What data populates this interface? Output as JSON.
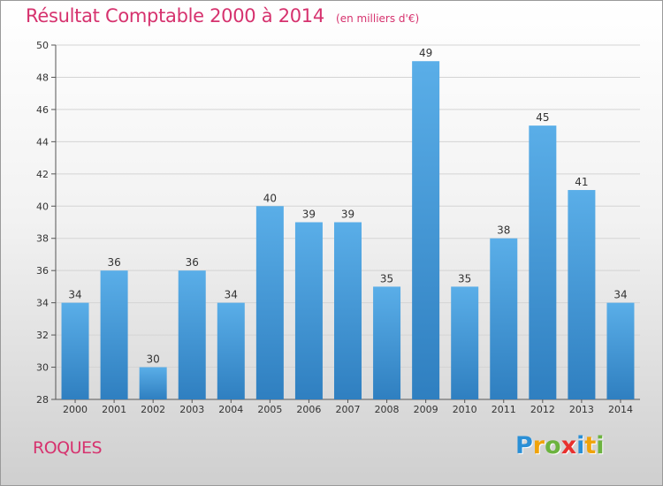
{
  "header": {
    "title": "Résultat Comptable 2000 à 2014",
    "subtitle": "(en milliers d'€)"
  },
  "footer": {
    "town": "ROQUES",
    "logo": {
      "text": "Proxiti",
      "letters": [
        {
          "ch": "P",
          "color": "#2a8fd6"
        },
        {
          "ch": "r",
          "color": "#f0a30a"
        },
        {
          "ch": "o",
          "color": "#6cb33f"
        },
        {
          "ch": "x",
          "color": "#e8302e"
        },
        {
          "ch": "i",
          "color": "#2a8fd6"
        },
        {
          "ch": "t",
          "color": "#f0a30a"
        },
        {
          "ch": "i",
          "color": "#6cb33f"
        }
      ]
    }
  },
  "chart_data": {
    "type": "bar",
    "title": "Résultat Comptable 2000 à 2014",
    "subtitle": "(en milliers d'€)",
    "categories": [
      "2000",
      "2001",
      "2002",
      "2003",
      "2004",
      "2005",
      "2006",
      "2007",
      "2008",
      "2009",
      "2010",
      "2011",
      "2012",
      "2013",
      "2014"
    ],
    "values": [
      34,
      36,
      30,
      36,
      34,
      40,
      39,
      39,
      35,
      49,
      35,
      38,
      45,
      41,
      34
    ],
    "ylim": [
      28,
      50
    ],
    "yticks": [
      28,
      30,
      32,
      34,
      36,
      38,
      40,
      42,
      44,
      46,
      48,
      50
    ],
    "grid": true,
    "bar_color_top": "#5aaee8",
    "bar_color_bottom": "#2f7fc0"
  }
}
